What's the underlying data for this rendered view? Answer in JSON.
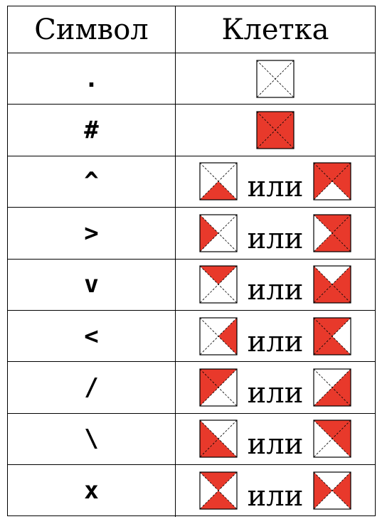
{
  "header": {
    "symbol": "Символ",
    "cell": "Клетка"
  },
  "or_word": "или",
  "colors": {
    "fill": "#e8392b",
    "line": "#000000",
    "empty": "#ffffff"
  },
  "rows": [
    {
      "symbol": ".",
      "tiles": [
        []
      ]
    },
    {
      "symbol": "#",
      "tiles": [
        [
          "top",
          "right",
          "bottom",
          "left"
        ]
      ]
    },
    {
      "symbol": "^",
      "tiles": [
        [
          "bottom"
        ],
        [
          "top",
          "left",
          "right"
        ]
      ]
    },
    {
      "symbol": ">",
      "tiles": [
        [
          "left"
        ],
        [
          "top",
          "right",
          "bottom"
        ]
      ]
    },
    {
      "symbol": "v",
      "tiles": [
        [
          "top"
        ],
        [
          "left",
          "right",
          "bottom"
        ]
      ]
    },
    {
      "symbol": "<",
      "tiles": [
        [
          "right"
        ],
        [
          "top",
          "left",
          "bottom"
        ]
      ]
    },
    {
      "symbol": "/",
      "tiles": [
        [
          "top",
          "left"
        ],
        [
          "right",
          "bottom"
        ]
      ]
    },
    {
      "symbol": "\\",
      "tiles": [
        [
          "left",
          "bottom"
        ],
        [
          "top",
          "right"
        ]
      ]
    },
    {
      "symbol": "x",
      "tiles": [
        [
          "top",
          "bottom"
        ],
        [
          "left",
          "right"
        ]
      ]
    }
  ]
}
